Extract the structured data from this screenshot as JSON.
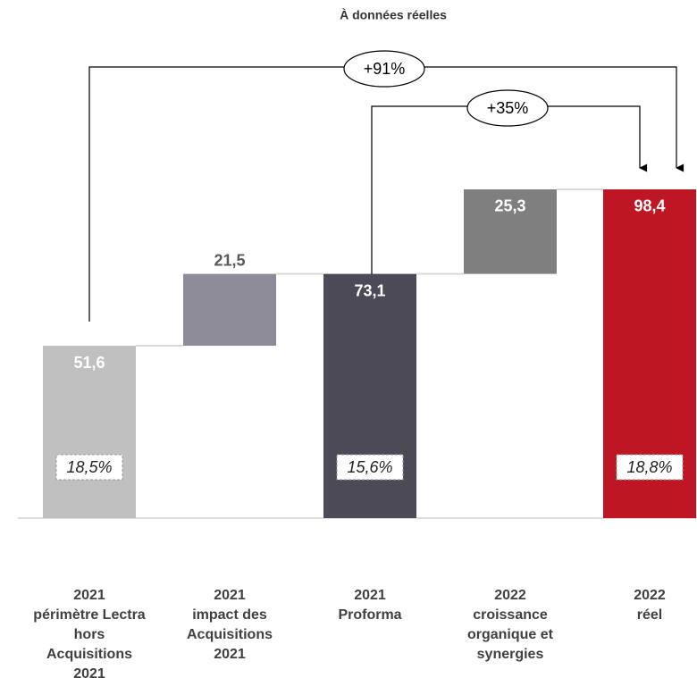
{
  "chart_data": {
    "type": "waterfall",
    "title": "À données réelles",
    "categories": [
      [
        "2021",
        "périmètre Lectra",
        "hors",
        "Acquisitions",
        "2021"
      ],
      [
        "2021",
        "impact des",
        "Acquisitions",
        "2021"
      ],
      [
        "2021",
        "Proforma"
      ],
      [
        "2022",
        "croissance",
        "organique et",
        "synergies"
      ],
      [
        "2022",
        "réel"
      ]
    ],
    "measures": [
      "total",
      "relative",
      "total",
      "relative",
      "total"
    ],
    "values": [
      51.6,
      21.5,
      73.1,
      25.3,
      98.4
    ],
    "value_labels": [
      "51,6",
      "21,5",
      "73,1",
      "25,3",
      "98,4"
    ],
    "colors": [
      "#c0c0c0",
      "#8f8c9a",
      "#4d4a57",
      "#7f7f7f",
      "#be1622"
    ],
    "margin_labels": [
      "18,5%",
      null,
      "15,6%",
      null,
      "18,8%"
    ],
    "annotations": [
      "+91%",
      "+35%"
    ],
    "ylim": [
      0,
      100
    ]
  }
}
